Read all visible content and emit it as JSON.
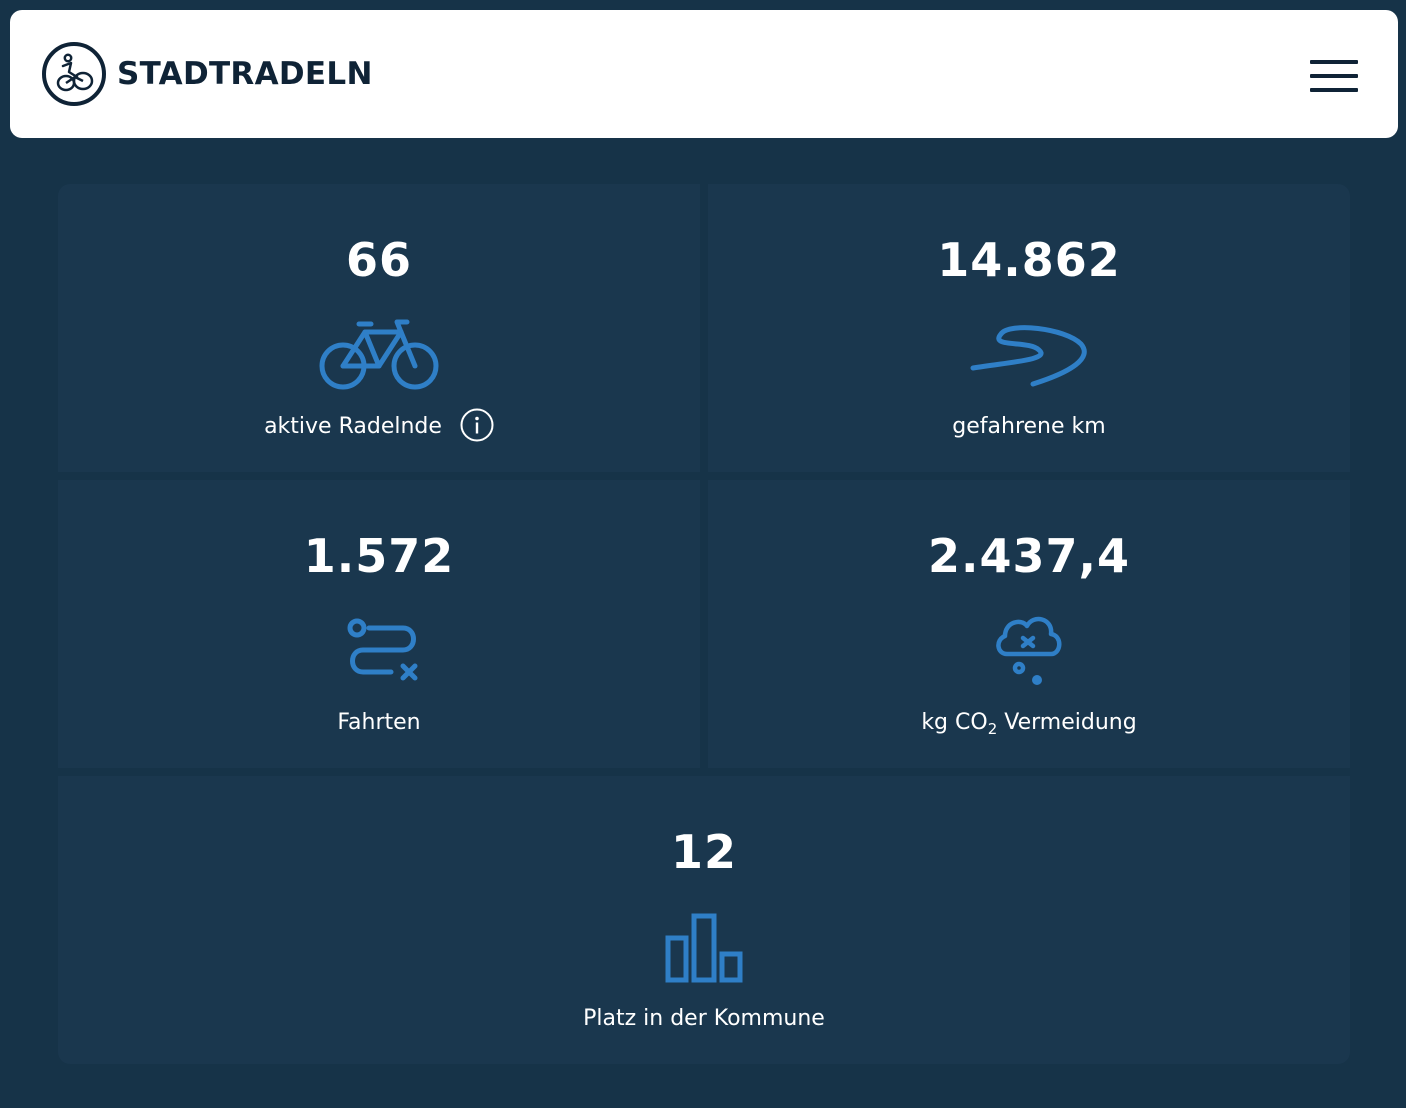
{
  "header": {
    "brand": "STADTRADELN",
    "logo_icon": "cyclist-logo-icon",
    "menu_icon": "hamburger-menu-icon"
  },
  "colors": {
    "background": "#163348",
    "tile": "#1a374e",
    "accent_icon": "#2f7fc7",
    "header_bg": "#ffffff",
    "header_text": "#0f2336"
  },
  "stats": {
    "active_riders": {
      "value": "66",
      "label": "aktive Radelnde",
      "icon": "bicycle-icon",
      "info_icon": "info-icon"
    },
    "km": {
      "value": "14.862",
      "label": "gefahrene km",
      "icon": "winding-road-icon"
    },
    "trips": {
      "value": "1.572",
      "label": "Fahrten",
      "icon": "route-icon"
    },
    "co2": {
      "value": "2.437,4",
      "label_prefix": "kg CO",
      "label_sub": "2",
      "label_suffix": " Vermeidung",
      "icon": "co2-cloud-icon"
    },
    "rank": {
      "value": "12",
      "label": "Platz in der Kommune",
      "icon": "bar-chart-icon"
    }
  }
}
